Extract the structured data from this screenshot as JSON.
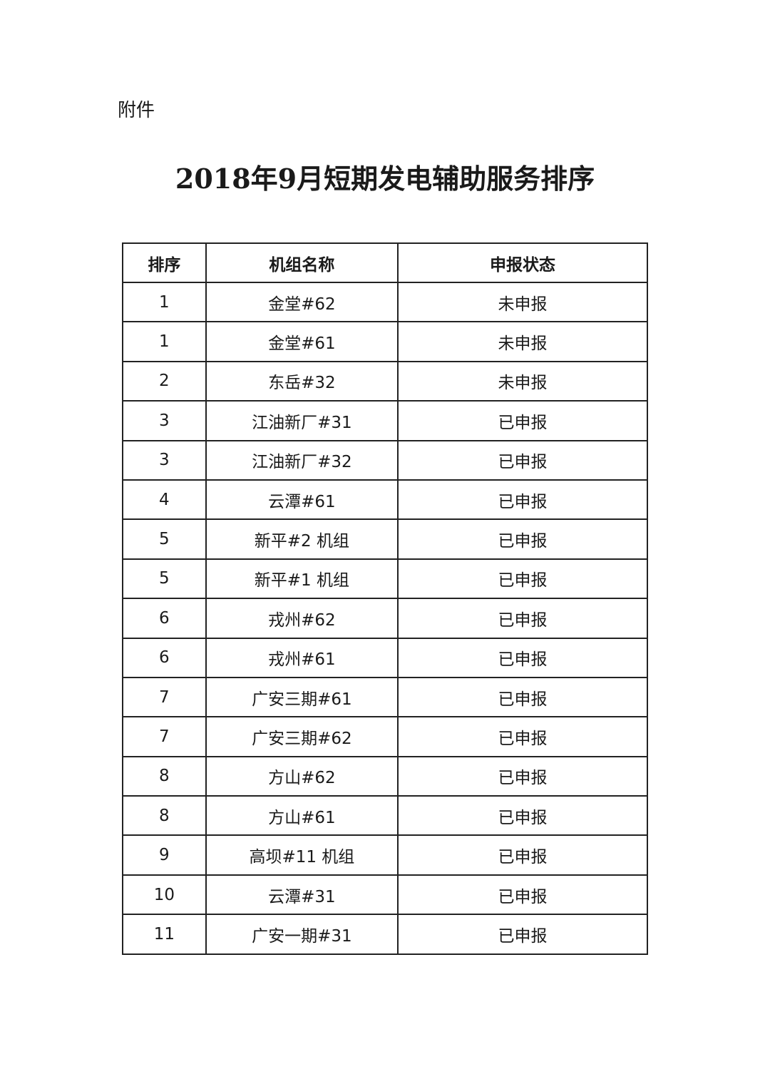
{
  "attachment_label": "附件",
  "title": "2018年9月短期发电辅助服务排序",
  "table": {
    "headers": [
      "排序",
      "机组名称",
      "申报状态"
    ],
    "rows": [
      [
        "1",
        "金堂#62",
        "未申报"
      ],
      [
        "1",
        "金堂#61",
        "未申报"
      ],
      [
        "2",
        "东岳#32",
        "未申报"
      ],
      [
        "3",
        "江油新厂#31",
        "已申报"
      ],
      [
        "3",
        "江油新厂#32",
        "已申报"
      ],
      [
        "4",
        "云潭#61",
        "已申报"
      ],
      [
        "5",
        "新平#2 机组",
        "已申报"
      ],
      [
        "5",
        "新平#1 机组",
        "已申报"
      ],
      [
        "6",
        "戎州#62",
        "已申报"
      ],
      [
        "6",
        "戎州#61",
        "已申报"
      ],
      [
        "7",
        "广安三期#61",
        "已申报"
      ],
      [
        "7",
        "广安三期#62",
        "已申报"
      ],
      [
        "8",
        "方山#62",
        "已申报"
      ],
      [
        "8",
        "方山#61",
        "已申报"
      ],
      [
        "9",
        "高坝#11 机组",
        "已申报"
      ],
      [
        "10",
        "云潭#31",
        "已申报"
      ],
      [
        "11",
        "广安一期#31",
        "已申报"
      ]
    ]
  }
}
